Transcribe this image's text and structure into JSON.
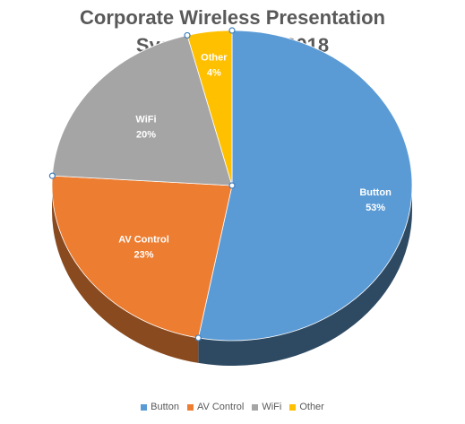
{
  "chart_data": {
    "type": "pie",
    "title": [
      "Corporate Wireless Presentation",
      "Systems - 2017-2018"
    ],
    "categories": [
      "Button",
      "AV Control",
      "WiFi",
      "Other"
    ],
    "values": [
      53,
      23,
      20,
      4
    ],
    "value_labels": [
      "53%",
      "23%",
      "20%",
      "4%"
    ],
    "colors": [
      "#5b9bd5",
      "#ed7d31",
      "#a5a5a5",
      "#ffc000"
    ],
    "side_colors": [
      "#2e4a63",
      "#8a4a1f",
      "#5e5e5e",
      "#8a6a00"
    ],
    "legend": "bottom",
    "style": "3d"
  }
}
